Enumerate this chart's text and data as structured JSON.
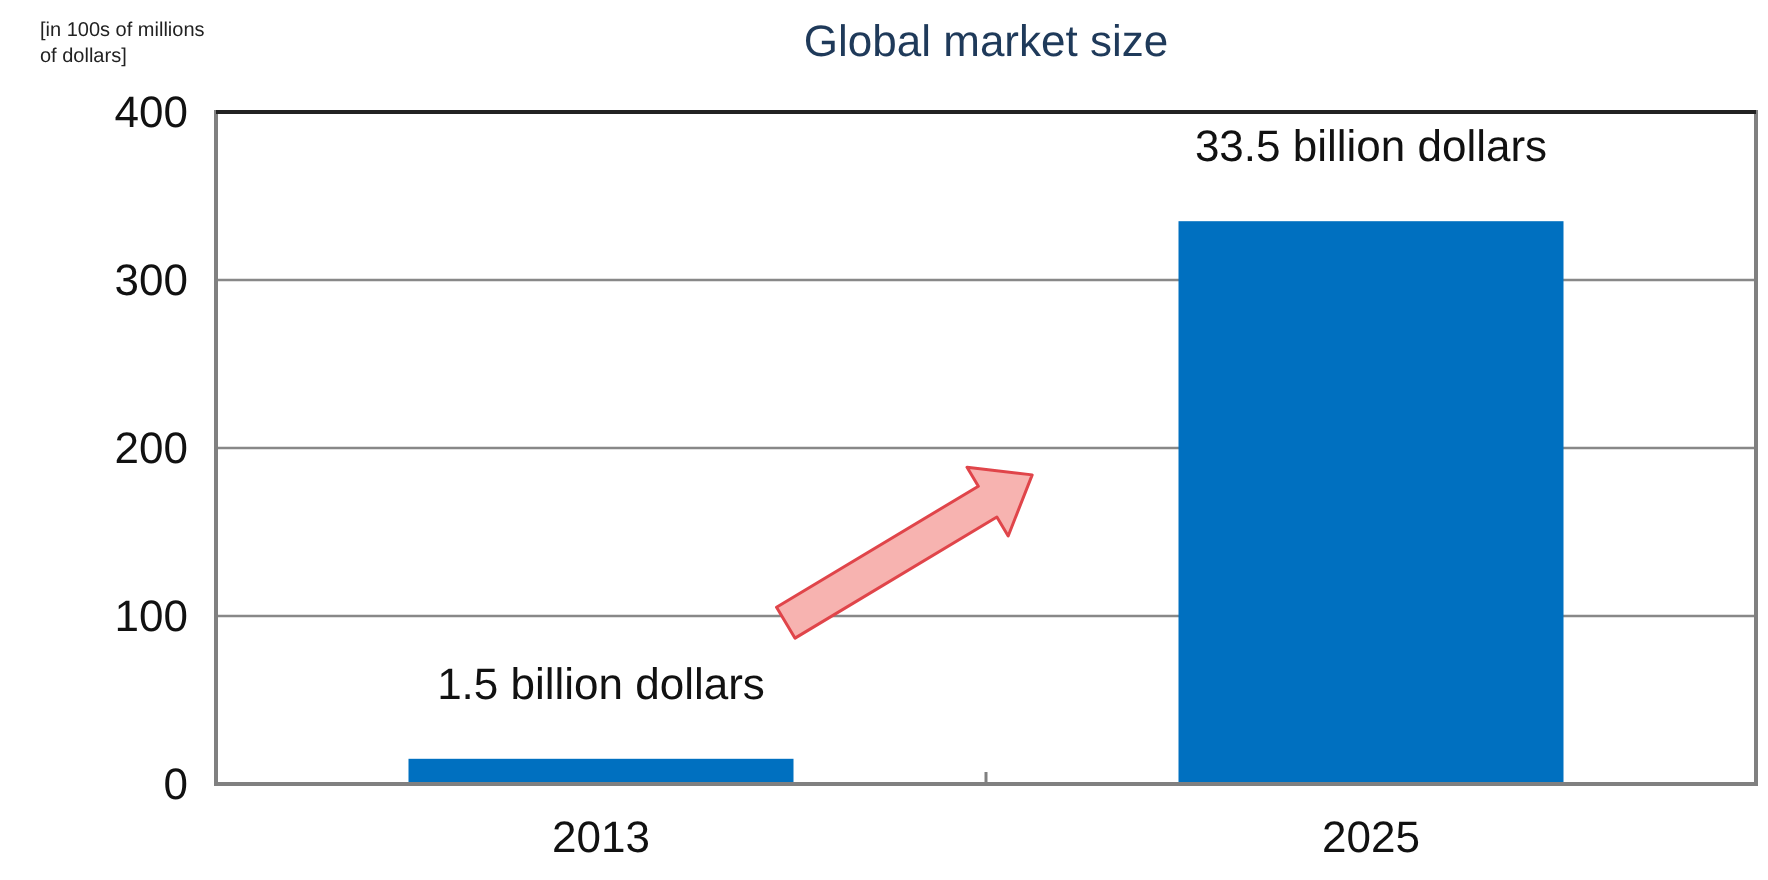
{
  "chart_data": {
    "type": "bar",
    "title": "Global market size",
    "ylabel": "[in 100s of millions of dollars]",
    "categories": [
      "2013",
      "2025"
    ],
    "values": [
      15,
      335
    ],
    "color": "#0070c0",
    "annotations": [
      {
        "text": "1.5 billion dollars",
        "x": "2013",
        "y": 15
      },
      {
        "text": "33.5 billion dollars",
        "x": "2025",
        "y": 335
      }
    ],
    "ylim": [
      0,
      400
    ],
    "yticks": [
      0,
      100,
      200,
      300,
      400
    ],
    "grid": "y"
  }
}
